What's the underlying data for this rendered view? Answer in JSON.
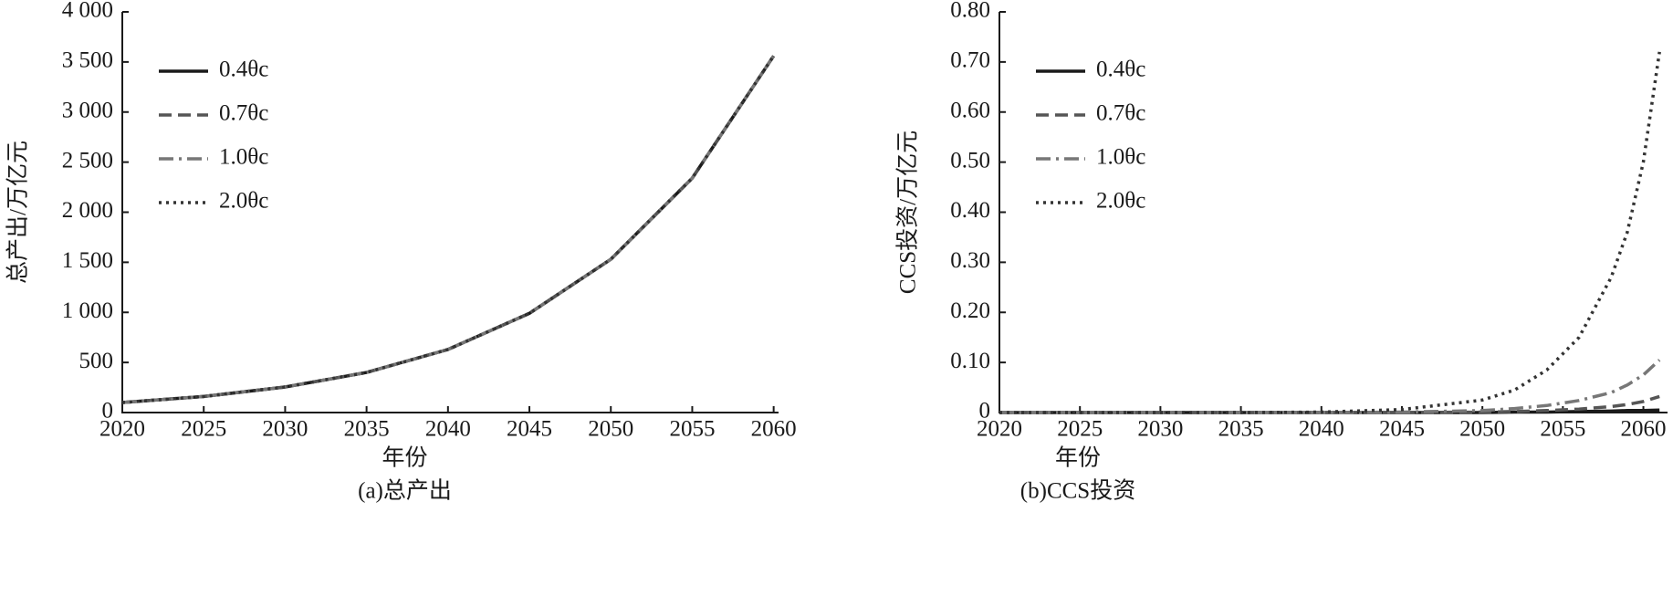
{
  "chart_data": [
    {
      "type": "line",
      "ylabel": "总产出/万亿元",
      "xlabel": "年份",
      "caption": "(a)总产出",
      "x": [
        2020,
        2025,
        2030,
        2035,
        2040,
        2045,
        2050,
        2055,
        2060
      ],
      "xlim": [
        2020,
        2060.3
      ],
      "xticks": [
        2020,
        2025,
        2030,
        2035,
        2040,
        2045,
        2050,
        2055,
        2060
      ],
      "ylim": [
        0,
        4000
      ],
      "yticks": [
        0,
        500,
        {
          "value": 1000,
          "label": "1 000"
        },
        {
          "value": 1500,
          "label": "1 500"
        },
        {
          "value": 2000,
          "label": "2 000"
        },
        {
          "value": 2500,
          "label": "2 500"
        },
        {
          "value": 3000,
          "label": "3 000"
        },
        {
          "value": 3500,
          "label": "3 500"
        },
        {
          "value": 4000,
          "label": "4 000"
        }
      ],
      "legend": "upper left",
      "series": [
        {
          "name": "0.4θc",
          "color": "#1a1a1a",
          "dash": "solid",
          "values": [
            100,
            160,
            255,
            400,
            630,
            990,
            1530,
            2340,
            3560
          ]
        },
        {
          "name": "0.7θc",
          "color": "#555555",
          "dash": "dashed",
          "values": [
            100,
            160,
            255,
            400,
            630,
            990,
            1530,
            2340,
            3560
          ]
        },
        {
          "name": "1.0θc",
          "color": "#777777",
          "dash": "dashdot",
          "values": [
            100,
            160,
            255,
            400,
            630,
            990,
            1530,
            2340,
            3560
          ]
        },
        {
          "name": "2.0θc",
          "color": "#333333",
          "dash": "dotted",
          "values": [
            100,
            160,
            255,
            400,
            630,
            990,
            1530,
            2340,
            3560
          ]
        }
      ]
    },
    {
      "type": "line",
      "ylabel": "CCS投资/万亿元",
      "xlabel": "年份",
      "caption": "(b)CCS投资",
      "x": [
        2020,
        2025,
        2030,
        2035,
        2040,
        2045,
        2050,
        2052,
        2054,
        2056,
        2058,
        2059,
        2060,
        2061
      ],
      "xlim": [
        2020,
        2061.5
      ],
      "xticks": [
        2020,
        2025,
        2030,
        2035,
        2040,
        2045,
        2050,
        2055,
        2060
      ],
      "ylim": [
        0,
        0.8
      ],
      "yticks": [
        0,
        {
          "value": 0.1,
          "label": "0.10"
        },
        {
          "value": 0.2,
          "label": "0.20"
        },
        {
          "value": 0.3,
          "label": "0.30"
        },
        {
          "value": 0.4,
          "label": "0.40"
        },
        {
          "value": 0.5,
          "label": "0.50"
        },
        {
          "value": 0.6,
          "label": "0.60"
        },
        {
          "value": 0.7,
          "label": "0.70"
        },
        {
          "value": 0.8,
          "label": "0.80"
        }
      ],
      "legend": "upper left",
      "series": [
        {
          "name": "0.4θc",
          "color": "#1a1a1a",
          "dash": "solid",
          "values": [
            0,
            0,
            0,
            0,
            0,
            0,
            0,
            0.001,
            0.001,
            0.002,
            0.003,
            0.004,
            0.004,
            0.005
          ]
        },
        {
          "name": "0.7θc",
          "color": "#555555",
          "dash": "dashed",
          "values": [
            0,
            0,
            0,
            0,
            0,
            0,
            0.001,
            0.002,
            0.004,
            0.007,
            0.012,
            0.016,
            0.022,
            0.032
          ]
        },
        {
          "name": "1.0θc",
          "color": "#777777",
          "dash": "dashdot",
          "values": [
            0,
            0,
            0,
            0,
            0,
            0.001,
            0.004,
            0.008,
            0.014,
            0.024,
            0.04,
            0.055,
            0.075,
            0.105
          ]
        },
        {
          "name": "2.0θc",
          "color": "#333333",
          "dash": "dotted",
          "values": [
            0,
            0,
            0,
            0,
            0.001,
            0.006,
            0.025,
            0.045,
            0.085,
            0.15,
            0.27,
            0.36,
            0.5,
            0.72
          ]
        }
      ]
    }
  ]
}
